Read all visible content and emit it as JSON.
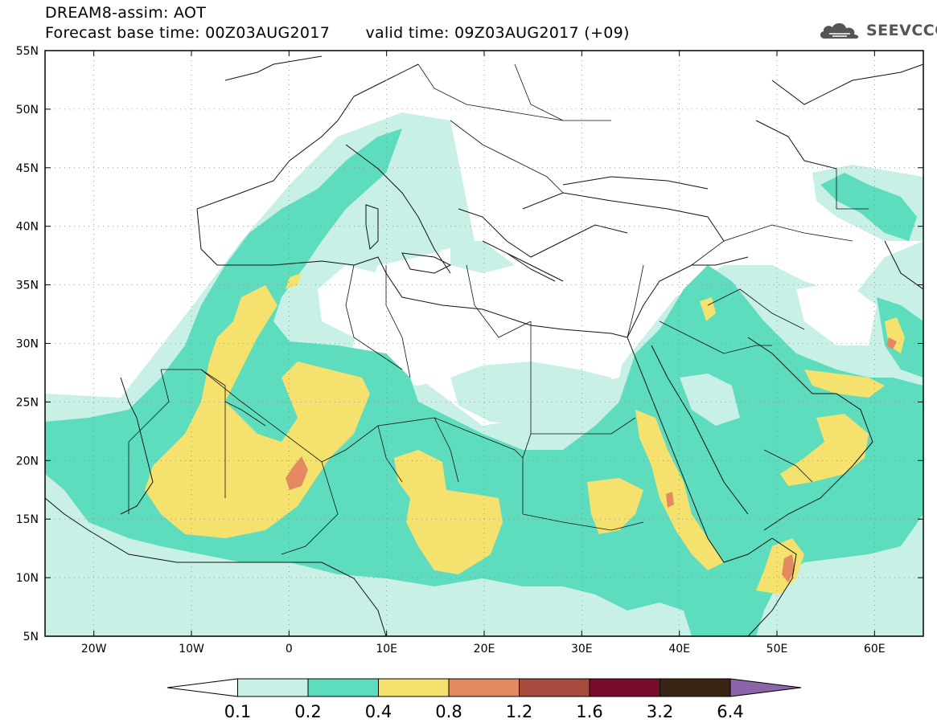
{
  "header": {
    "title": "DREAM8-assim: AOT",
    "forecast_label": "Forecast base time: 00Z03AUG2017",
    "valid_label": "valid time: 09Z03AUG2017 (+09)"
  },
  "logo": {
    "text": "SEEVCCC",
    "icon": "cloud-icon"
  },
  "map": {
    "lat_labels": [
      "55N",
      "50N",
      "45N",
      "40N",
      "35N",
      "30N",
      "25N",
      "20N",
      "15N",
      "10N",
      "5N"
    ],
    "lon_labels": [
      "20W",
      "10W",
      "0",
      "10E",
      "20E",
      "30E",
      "40E",
      "50E",
      "60E"
    ],
    "lat_range": [
      5,
      55
    ],
    "lon_range": [
      -25,
      65
    ],
    "grid": "dotted"
  },
  "colorbar": {
    "labels": [
      "0.1",
      "0.2",
      "0.4",
      "0.8",
      "1.2",
      "1.6",
      "3.2",
      "6.4"
    ],
    "colors": [
      "#ffffff",
      "#c8f0e6",
      "#5ddcbe",
      "#f5e16e",
      "#e38a62",
      "#a54a3c",
      "#7a0a2a",
      "#3a2414",
      "#8c64aa"
    ]
  }
}
